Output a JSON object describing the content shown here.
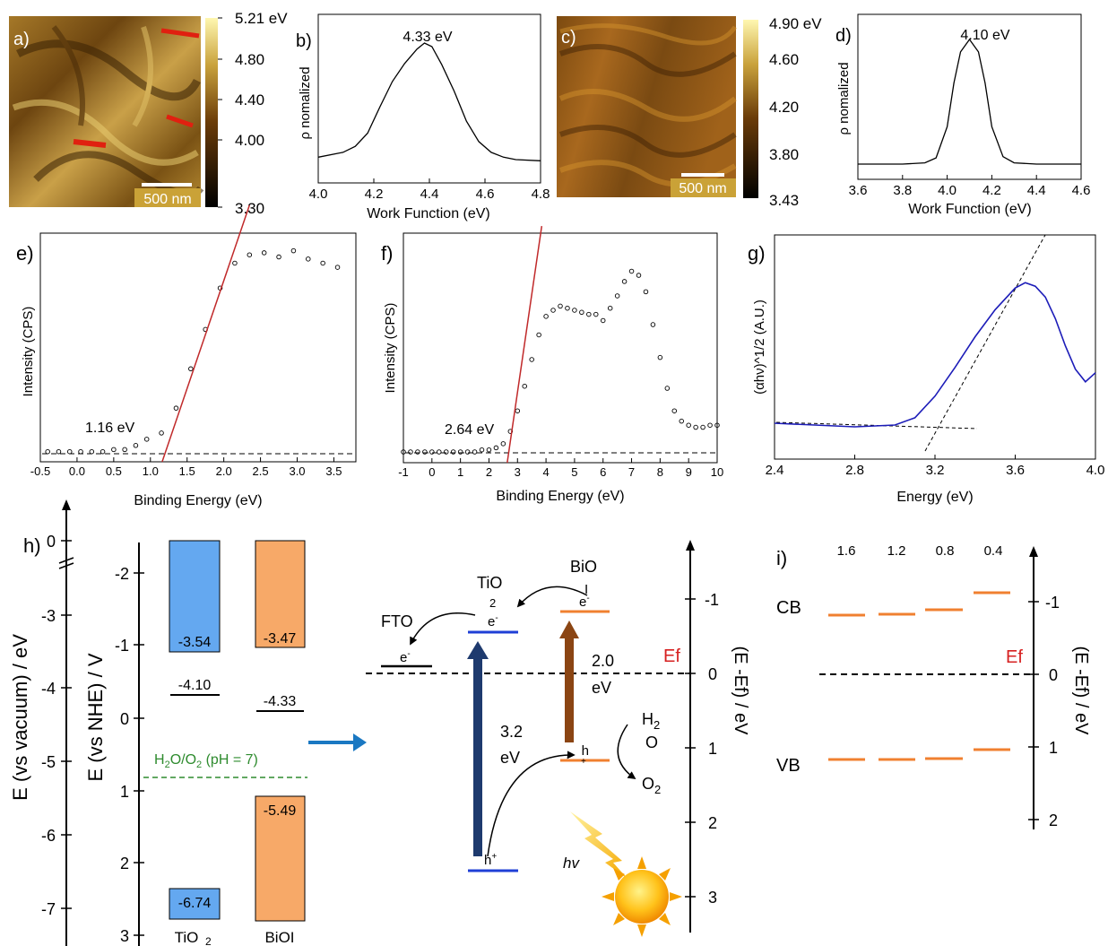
{
  "panel_labels": {
    "a": "a)",
    "b": "b)",
    "c": "c)",
    "d": "d)",
    "e": "e)",
    "f": "f)",
    "g": "g)",
    "h": "h)",
    "i": "i)"
  },
  "map_a": {
    "scalebar": "500 nm",
    "colorbar": {
      "max": "5.21 eV",
      "ticks": [
        "4.80",
        "4.40",
        "4.00"
      ],
      "min": "3.30"
    }
  },
  "map_c": {
    "scalebar": "500 nm",
    "colorbar": {
      "max": "4.90 eV",
      "ticks": [
        "4.60",
        "4.20",
        "3.80"
      ],
      "min": "3.43"
    }
  },
  "colors": {
    "afm_dark": "#1c0d00",
    "afm_mid": "#8a5a12",
    "afm_light": "#f2e07a",
    "red_fit": "#c0292a",
    "tio2": "#64a8f0",
    "bioi": "#f7a968",
    "navy": "#1e3a6e",
    "brown": "#8b4513",
    "blue_line": "#1f3fd6",
    "orange_line": "#f08030",
    "ef_red": "#d62020",
    "h2o_green": "#2e8b2e",
    "uv_blue": "#1c1cb8",
    "arrow_blue": "#1a78c2"
  },
  "chart_data": [
    {
      "type": "line",
      "id": "b",
      "ylabel": "ρ nomalized",
      "xlabel": "Work Function (eV)",
      "xlim": [
        3.9,
        4.8
      ],
      "xticks": [
        "4.0",
        "4.2",
        "4.4",
        "4.6",
        "4.8"
      ],
      "peak_label": "4.33 eV",
      "x": [
        3.9,
        4.0,
        4.05,
        4.1,
        4.15,
        4.2,
        4.25,
        4.3,
        4.33,
        4.36,
        4.4,
        4.45,
        4.5,
        4.55,
        4.6,
        4.65,
        4.7,
        4.8
      ],
      "y": [
        0.05,
        0.09,
        0.14,
        0.25,
        0.47,
        0.68,
        0.83,
        0.95,
        1.0,
        0.97,
        0.82,
        0.6,
        0.35,
        0.18,
        0.09,
        0.05,
        0.03,
        0.02
      ]
    },
    {
      "type": "line",
      "id": "d",
      "ylabel": "ρ nomalized",
      "xlabel": "Work Function (eV)",
      "xlim": [
        3.6,
        4.6
      ],
      "xticks": [
        "3.6",
        "3.8",
        "4.0",
        "4.2",
        "4.4",
        "4.6"
      ],
      "peak_label": "4.10 eV",
      "x": [
        3.6,
        3.8,
        3.9,
        3.95,
        4.0,
        4.03,
        4.06,
        4.1,
        4.14,
        4.17,
        4.2,
        4.25,
        4.3,
        4.4,
        4.6
      ],
      "y": [
        0.0,
        0.0,
        0.01,
        0.05,
        0.3,
        0.65,
        0.9,
        1.0,
        0.9,
        0.65,
        0.3,
        0.06,
        0.01,
        0.0,
        0.0
      ]
    },
    {
      "type": "scatter",
      "id": "e",
      "ylabel": "Intensity (CPS)",
      "xlabel": "Binding Energy (eV)",
      "xlim": [
        -0.5,
        3.8
      ],
      "xticks": [
        "-0.5",
        "0.0",
        "0.5",
        "1.0",
        "1.5",
        "2.0",
        "2.5",
        "3.0",
        "3.5"
      ],
      "annotation": "1.16 eV",
      "x": [
        -0.4,
        -0.25,
        -0.1,
        0.05,
        0.2,
        0.35,
        0.5,
        0.65,
        0.8,
        0.95,
        1.15,
        1.35,
        1.55,
        1.75,
        1.95,
        2.15,
        2.35,
        2.55,
        2.75,
        2.95,
        3.15,
        3.35,
        3.55
      ],
      "y": [
        0.01,
        0.01,
        0.01,
        0.01,
        0.01,
        0.01,
        0.02,
        0.02,
        0.04,
        0.07,
        0.1,
        0.22,
        0.41,
        0.6,
        0.8,
        0.92,
        0.96,
        0.97,
        0.95,
        0.98,
        0.94,
        0.92,
        0.9
      ],
      "fit": {
        "x0": 1.16,
        "x1": 2.35,
        "y0": 0,
        "y1": 1.2
      }
    },
    {
      "type": "scatter",
      "id": "f",
      "ylabel": "Intensity (CPS)",
      "xlabel": "Binding Energy (eV)",
      "xlim": [
        -1,
        10
      ],
      "xticks": [
        "-1",
        "0",
        "1",
        "2",
        "3",
        "4",
        "5",
        "6",
        "7",
        "8",
        "9",
        "10"
      ],
      "annotation": "2.64 eV",
      "x": [
        -1,
        -0.75,
        -0.5,
        -0.25,
        0,
        0.25,
        0.5,
        0.75,
        1,
        1.25,
        1.5,
        1.75,
        2,
        2.25,
        2.5,
        2.75,
        3,
        3.25,
        3.5,
        3.75,
        4,
        4.25,
        4.5,
        4.75,
        5,
        5.25,
        5.5,
        5.75,
        6,
        6.25,
        6.5,
        6.75,
        7,
        7.25,
        7.5,
        7.75,
        8,
        8.25,
        8.5,
        8.75,
        9,
        9.25,
        9.5,
        9.75,
        10
      ],
      "y": [
        0.0,
        0.0,
        0.0,
        0.0,
        0.0,
        0.0,
        0.0,
        0.0,
        0.0,
        0.0,
        0.0,
        0.01,
        0.01,
        0.02,
        0.04,
        0.1,
        0.2,
        0.32,
        0.45,
        0.57,
        0.66,
        0.69,
        0.71,
        0.7,
        0.69,
        0.68,
        0.67,
        0.67,
        0.64,
        0.7,
        0.76,
        0.83,
        0.88,
        0.86,
        0.78,
        0.62,
        0.46,
        0.31,
        0.2,
        0.15,
        0.13,
        0.12,
        0.12,
        0.13,
        0.13
      ],
      "fit": {
        "x0": 2.64,
        "x1": 3.85,
        "y0": 0,
        "y1": 1.1
      }
    },
    {
      "type": "line",
      "id": "g",
      "ylabel": "(αhν)^1/2 (A.U.)",
      "xlabel": "Energy (eV)",
      "xlim": [
        2.4,
        4.0
      ],
      "xticks": [
        "2.4",
        "2.8",
        "3.2",
        "3.6",
        "4.0"
      ],
      "x": [
        2.4,
        2.6,
        2.8,
        3.0,
        3.1,
        3.2,
        3.3,
        3.4,
        3.5,
        3.6,
        3.65,
        3.7,
        3.75,
        3.8,
        3.85,
        3.9,
        3.95,
        4.0
      ],
      "y": [
        0.02,
        0.01,
        0.0,
        0.01,
        0.05,
        0.17,
        0.33,
        0.5,
        0.65,
        0.77,
        0.8,
        0.78,
        0.72,
        0.6,
        0.45,
        0.32,
        0.25,
        0.3
      ]
    }
  ],
  "h": {
    "left_axis_label": "E (vs vacuum) / eV",
    "left_ticks": [
      "0",
      "-3",
      "-4",
      "-5",
      "-6",
      "-7"
    ],
    "nhe_axis_label": "E (vs NHE) / V",
    "nhe_ticks": [
      "-2",
      "-1",
      "0",
      "1",
      "2",
      "3"
    ],
    "tio2": {
      "name": "TiO",
      "sub": "2",
      "cb": "-3.54",
      "ef": "-4.10",
      "vb": "-6.74"
    },
    "bioi": {
      "name": "BiOI",
      "cb": "-3.47",
      "ef": "-4.33",
      "vb": "-5.49"
    },
    "h2o_label": "H",
    "h2o_sub": "2",
    "h2o_o": "O/O",
    "h2o_sub2": "2",
    "h2o_ph": " (pH = 7)",
    "fto": "FTO",
    "tio_label": "TiO",
    "tio_sub": "2",
    "bio_label": "BiO",
    "bio_sub": "I",
    "electron": "e",
    "minus": "-",
    "hole": "h",
    "plus": "+",
    "gap_tio2": "3.2",
    "gap_bioi": "2.0",
    "ev": "eV",
    "water_h": "H",
    "water_2": "2",
    "water_o": "O",
    "oxygen": "O",
    "oxygen_2": "2",
    "hv": "hv",
    "ef": "Ef",
    "right_axis_label": "(E -Ef) / eV",
    "right_ticks": [
      "-1",
      "0",
      "1",
      "2",
      "3"
    ]
  },
  "i": {
    "top_labels": [
      "1.6",
      "1.2",
      "0.8",
      "0.4"
    ],
    "cb": "CB",
    "vb": "VB",
    "ef": "Ef",
    "right_axis_label": "(E -Ef) / eV",
    "right_ticks": [
      "-1",
      "0",
      "1",
      "2"
    ]
  }
}
